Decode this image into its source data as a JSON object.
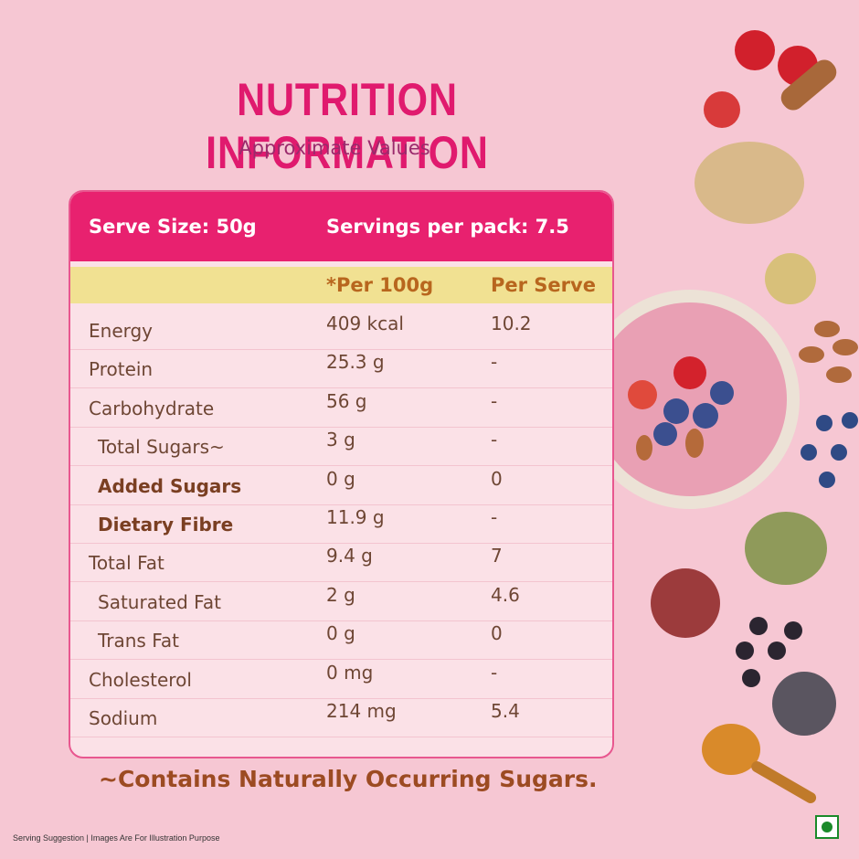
{
  "header": {
    "title": "Nutrition Information",
    "subtitle": "Approximate Values"
  },
  "table": {
    "serve_size": "Serve Size: 50g",
    "servings": "Servings per pack: 7.5",
    "columns": [
      "*Per 100g",
      "Per Serve"
    ],
    "rows": [
      [
        "Energy",
        "409 kcal",
        "10.2"
      ],
      [
        "Protein",
        "25.3 g",
        "-"
      ],
      [
        "Carbohydrate",
        "56 g",
        "-"
      ],
      [
        "Total Sugars~",
        "3 g",
        "-"
      ],
      [
        "Added Sugars",
        "0 g",
        "0"
      ],
      [
        "Dietary Fibre",
        "11.9 g",
        "-"
      ],
      [
        "Total Fat",
        "9.4 g",
        "7"
      ],
      [
        "Saturated Fat",
        "2 g",
        "4.6"
      ],
      [
        "Trans Fat",
        "0 g",
        "0"
      ],
      [
        "Cholesterol",
        "0 mg",
        "-"
      ],
      [
        "Sodium",
        "214 mg",
        "5.4"
      ]
    ]
  },
  "footnote": "~Contains Naturally Occurring Sugars.",
  "disclaimer": "Serving Suggestion | Images Are For Illustration Purpose"
}
